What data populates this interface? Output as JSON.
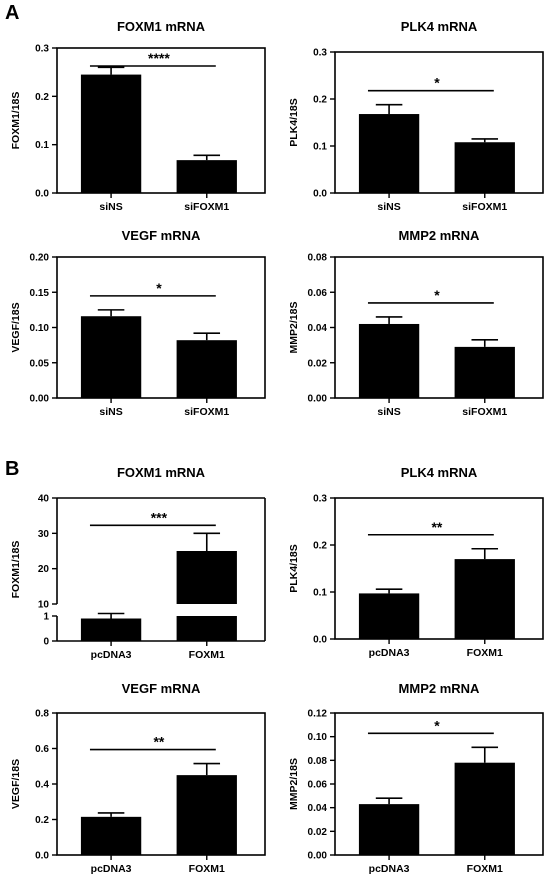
{
  "panels": [
    {
      "letter": "A"
    },
    {
      "letter": "B"
    }
  ],
  "chart_data": [
    {
      "type": "bar",
      "panel": "A",
      "title": "FOXM1 mRNA",
      "ylabel": "FOXM1/18S",
      "categories": [
        "siNS",
        "siFOXM1"
      ],
      "values": [
        0.245,
        0.068
      ],
      "errors": [
        0.015,
        0.01
      ],
      "ylim": [
        0,
        0.3
      ],
      "yticks": [
        "0.0",
        "0.1",
        "0.2",
        "0.3"
      ],
      "significance": "****"
    },
    {
      "type": "bar",
      "panel": "A",
      "title": "PLK4 mRNA",
      "ylabel": "PLK4/18S",
      "categories": [
        "siNS",
        "siFOXM1"
      ],
      "values": [
        0.168,
        0.108
      ],
      "errors": [
        0.02,
        0.007
      ],
      "ylim": [
        0,
        0.3
      ],
      "yticks": [
        "0.0",
        "0.1",
        "0.2",
        "0.3"
      ],
      "significance": "*"
    },
    {
      "type": "bar",
      "panel": "A",
      "title": "VEGF mRNA",
      "ylabel": "VEGF/18S",
      "categories": [
        "siNS",
        "siFOXM1"
      ],
      "values": [
        0.116,
        0.082
      ],
      "errors": [
        0.009,
        0.01
      ],
      "ylim": [
        0,
        0.2
      ],
      "yticks": [
        "0.00",
        "0.05",
        "0.10",
        "0.15",
        "0.20"
      ],
      "significance": "*"
    },
    {
      "type": "bar",
      "panel": "A",
      "title": "MMP2 mRNA",
      "ylabel": "MMP2/18S",
      "categories": [
        "siNS",
        "siFOXM1"
      ],
      "values": [
        0.042,
        0.029
      ],
      "errors": [
        0.004,
        0.004
      ],
      "ylim": [
        0,
        0.08
      ],
      "yticks": [
        "0.00",
        "0.02",
        "0.04",
        "0.06",
        "0.08"
      ],
      "significance": "*"
    },
    {
      "type": "bar",
      "panel": "B",
      "title": "FOXM1 mRNA",
      "ylabel": "FOXM1/18S",
      "categories": [
        "pcDNA3",
        "FOXM1"
      ],
      "values": [
        0.9,
        25
      ],
      "errors": [
        0.2,
        5
      ],
      "axis_break": true,
      "lower_range": [
        0,
        1
      ],
      "upper_range": [
        10,
        40
      ],
      "yticks": [
        "0",
        "1",
        "10",
        "20",
        "30",
        "40"
      ],
      "significance": "***"
    },
    {
      "type": "bar",
      "panel": "B",
      "title": "PLK4 mRNA",
      "ylabel": "PLK4/18S",
      "categories": [
        "pcDNA3",
        "FOXM1"
      ],
      "values": [
        0.097,
        0.17
      ],
      "errors": [
        0.009,
        0.022
      ],
      "ylim": [
        0,
        0.3
      ],
      "yticks": [
        "0.0",
        "0.1",
        "0.2",
        "0.3"
      ],
      "significance": "**"
    },
    {
      "type": "bar",
      "panel": "B",
      "title": "VEGF mRNA",
      "ylabel": "VEGF/18S",
      "categories": [
        "pcDNA3",
        "FOXM1"
      ],
      "values": [
        0.215,
        0.45
      ],
      "errors": [
        0.022,
        0.065
      ],
      "ylim": [
        0,
        0.8
      ],
      "yticks": [
        "0.0",
        "0.2",
        "0.4",
        "0.6",
        "0.8"
      ],
      "significance": "**"
    },
    {
      "type": "bar",
      "panel": "B",
      "title": "MMP2 mRNA",
      "ylabel": "MMP2/18S",
      "categories": [
        "pcDNA3",
        "FOXM1"
      ],
      "values": [
        0.043,
        0.078
      ],
      "errors": [
        0.005,
        0.013
      ],
      "ylim": [
        0,
        0.12
      ],
      "yticks": [
        "0.00",
        "0.02",
        "0.04",
        "0.06",
        "0.08",
        "0.10",
        "0.12"
      ],
      "significance": "*"
    }
  ]
}
